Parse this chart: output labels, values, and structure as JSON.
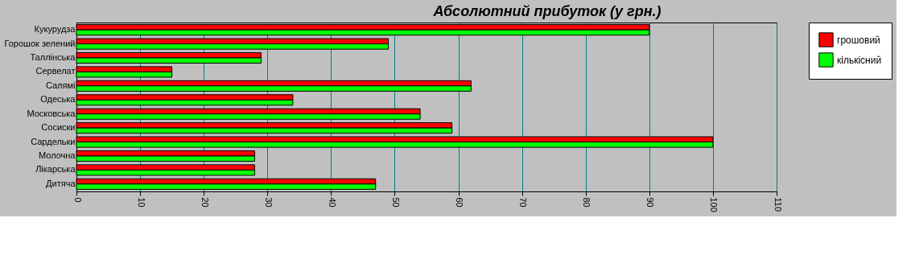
{
  "chart_data": {
    "type": "bar",
    "orientation": "horizontal",
    "title": "Абсолютний прибуток (у грн.)",
    "categories": [
      "Кукурудза",
      "Горошок зелений",
      "Таллінська",
      "Сервелат",
      "Салямі",
      "Одеська",
      "Московська",
      "Сосиски",
      "Сардельки",
      "Молочна",
      "Лікарська",
      "Дитяча"
    ],
    "series": [
      {
        "name": "грошовий",
        "color": "#ff0000",
        "values": [
          90,
          49,
          29,
          15,
          62,
          34,
          54,
          59,
          100,
          28,
          28,
          47
        ]
      },
      {
        "name": "кількісний",
        "color": "#00ff00",
        "values": [
          90,
          49,
          29,
          15,
          62,
          34,
          54,
          59,
          100,
          28,
          28,
          47
        ]
      }
    ],
    "xlim": [
      0,
      110
    ],
    "xticks": [
      0,
      10,
      20,
      30,
      40,
      50,
      60,
      70,
      80,
      90,
      100,
      110
    ],
    "grid": "x",
    "legend": "right"
  }
}
